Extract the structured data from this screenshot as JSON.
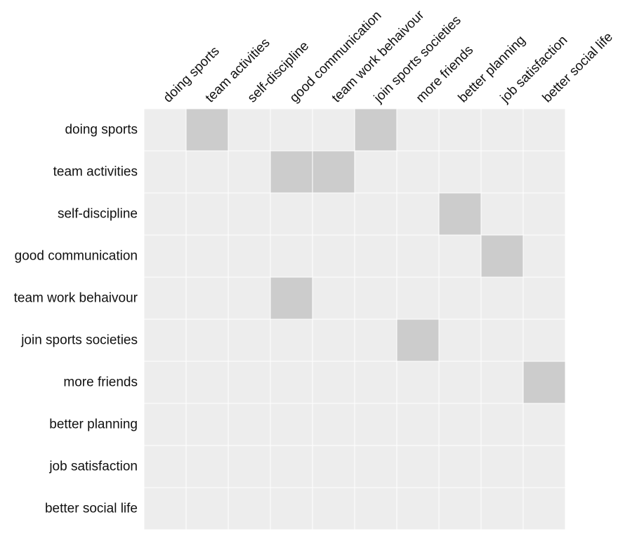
{
  "matrix": {
    "row_labels": [
      "doing sports",
      "team activities",
      "self-discipline",
      "good communication",
      "team work behaivour",
      "join sports societies",
      "more friends",
      "better planning",
      "job satisfaction",
      "better social life"
    ],
    "column_labels": [
      "doing sports",
      "team activities",
      "self-discipline",
      "good communication",
      "team work behaivour",
      "join sports societies",
      "more friends",
      "better planning",
      "job satisfaction",
      "better social life"
    ],
    "links": [
      {
        "from": "doing sports",
        "to": "team activities"
      },
      {
        "from": "doing sports",
        "to": "join sports societies"
      },
      {
        "from": "team activities",
        "to": "good communication"
      },
      {
        "from": "team activities",
        "to": "team work behaivour"
      },
      {
        "from": "self-discipline",
        "to": "better planning"
      },
      {
        "from": "good communication",
        "to": "job satisfaction"
      },
      {
        "from": "team work behaivour",
        "to": "good communication"
      },
      {
        "from": "join sports societies",
        "to": "more friends"
      },
      {
        "from": "more friends",
        "to": "better social life"
      }
    ],
    "colors": {
      "empty_cell": "#ededed",
      "filled_cell": "#cccccc",
      "grid_line": "#ffffff",
      "label_text": "#111111"
    }
  }
}
